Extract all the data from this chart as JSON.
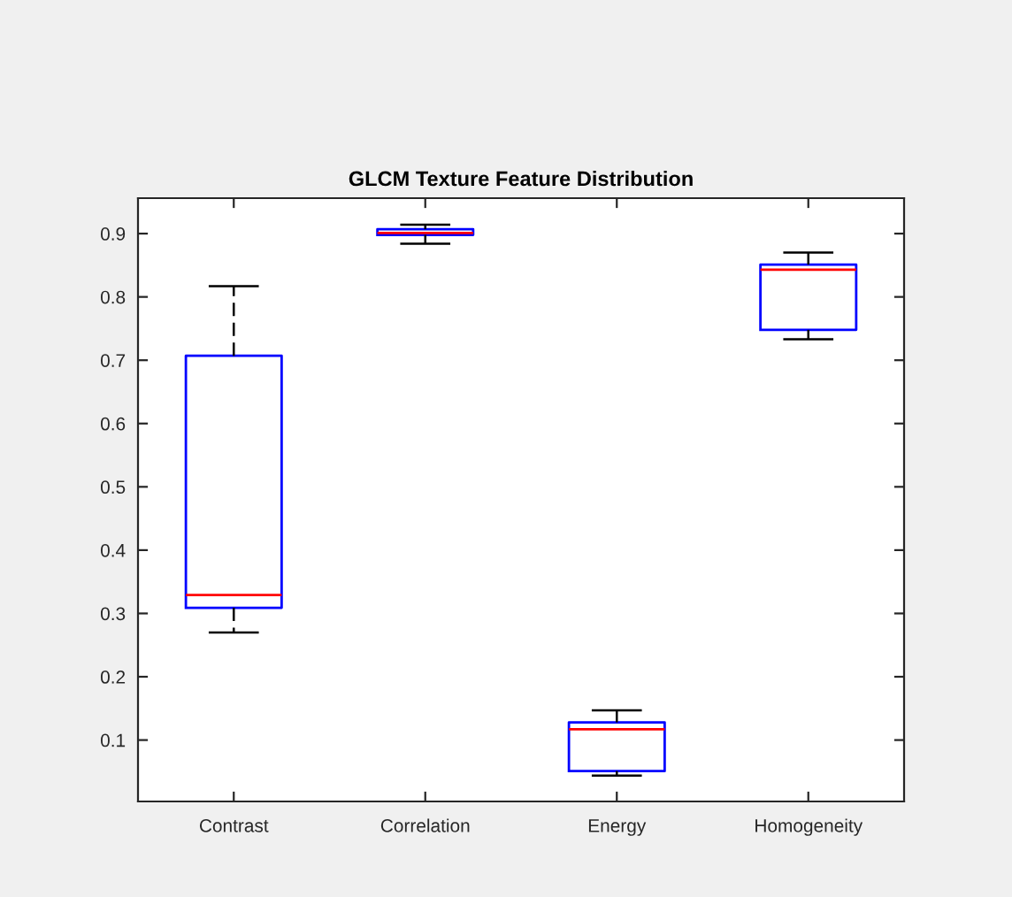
{
  "chart_data": {
    "type": "box",
    "title": "GLCM Texture Feature Distribution",
    "categories": [
      "Contrast",
      "Correlation",
      "Energy",
      "Homogeneity"
    ],
    "boxes": [
      {
        "low": 0.27,
        "q1": 0.309,
        "median": 0.329,
        "q3": 0.707,
        "high": 0.817
      },
      {
        "low": 0.884,
        "q1": 0.898,
        "median": 0.901,
        "q3": 0.907,
        "high": 0.914
      },
      {
        "low": 0.044,
        "q1": 0.051,
        "median": 0.117,
        "q3": 0.128,
        "high": 0.147
      },
      {
        "low": 0.733,
        "q1": 0.748,
        "median": 0.843,
        "q3": 0.851,
        "high": 0.87
      }
    ],
    "color": "#0000ff",
    "line_style": "dashed",
    "ylim": [
      0.003,
      0.956
    ],
    "yticks": [
      0.1,
      0.2,
      0.3,
      0.4,
      0.5,
      0.6,
      0.7,
      0.8,
      0.9
    ]
  }
}
